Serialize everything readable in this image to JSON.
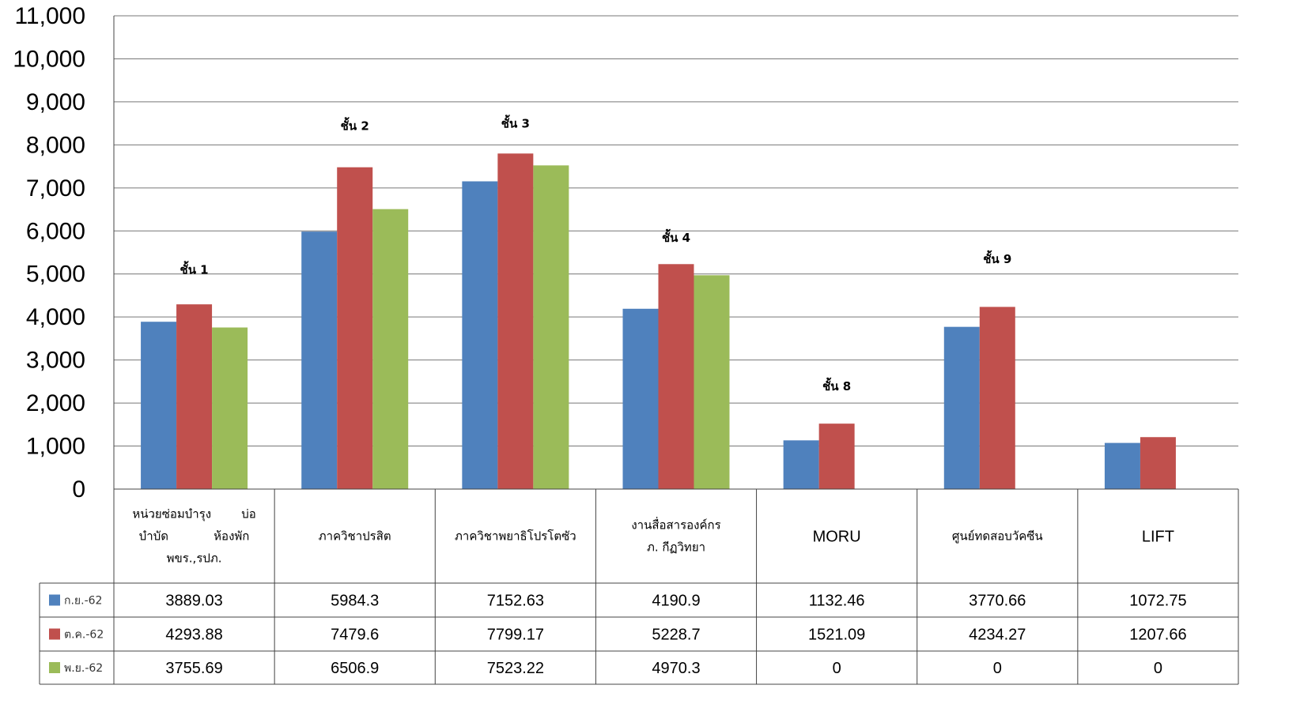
{
  "chart_data": {
    "type": "bar",
    "ylim": [
      0,
      11000
    ],
    "yticks": [
      "0",
      "1,000",
      "2,000",
      "3,000",
      "4,000",
      "5,000",
      "6,000",
      "7,000",
      "8,000",
      "9,000",
      "10,000",
      "11,000"
    ],
    "grid": true,
    "categories": [
      [
        "หน่วยซ่อมบำรุง        บ่อ",
        "บำบัด            ห้องพัก",
        "พขร.,รปภ."
      ],
      [
        "ภาควิชาปรสิต"
      ],
      [
        "ภาควิชาพยาธิโปรโตซัว"
      ],
      [
        "งานสื่อสารองค์กร",
        "ภ. กีฏวิทยา"
      ],
      [
        "MORU"
      ],
      [
        "ศูนย์ทดสอบวัคซีน"
      ],
      [
        "LIFT"
      ]
    ],
    "series": [
      {
        "name": "ก.ย.-62",
        "color": "#4F81BD",
        "values": [
          3889.03,
          5984.3,
          7152.63,
          4190.9,
          1132.46,
          3770.66,
          1072.75
        ],
        "labels": [
          "3889.03",
          "5984.3",
          "7152.63",
          "4190.9",
          "1132.46",
          "3770.66",
          "1072.75"
        ]
      },
      {
        "name": "ต.ค.-62",
        "color": "#C0504D",
        "values": [
          4293.88,
          7479.6,
          7799.17,
          5228.7,
          1521.09,
          4234.27,
          1207.66
        ],
        "labels": [
          "4293.88",
          "7479.6",
          "7799.17",
          "5228.7",
          "1521.09",
          "4234.27",
          "1207.66"
        ]
      },
      {
        "name": "พ.ย.-62",
        "color": "#9BBB59",
        "values": [
          3755.69,
          6506.9,
          7523.22,
          4970.3,
          0,
          0,
          0
        ],
        "labels": [
          "3755.69",
          "6506.9",
          "7523.22",
          "4970.3",
          "0",
          "0",
          "0"
        ]
      }
    ],
    "annotations": [
      {
        "category": 0,
        "text": "ชั้น 1",
        "y": 5000
      },
      {
        "category": 1,
        "text": "ชั้น 2",
        "y": 8350
      },
      {
        "category": 2,
        "text": "ชั้น 3",
        "y": 8400
      },
      {
        "category": 3,
        "text": "ชั้น 4",
        "y": 5750
      },
      {
        "category": 4,
        "text": "ชั้น 8",
        "y": 2300
      },
      {
        "category": 5,
        "text": "ชั้น 9",
        "y": 5250
      }
    ]
  }
}
